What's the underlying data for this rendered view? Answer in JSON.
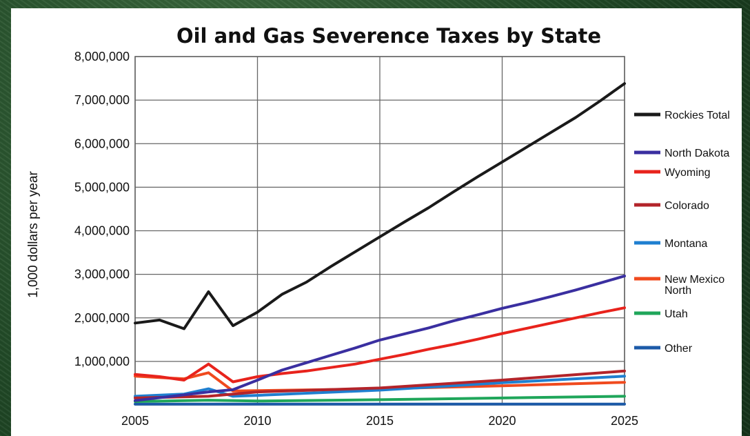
{
  "chart_data": {
    "type": "line",
    "title": "Oil and Gas Severence Taxes by State",
    "xlabel": "",
    "ylabel": "1,000 dollars per year",
    "xlim": [
      2005,
      2025
    ],
    "ylim": [
      0,
      8000000
    ],
    "x_ticks": [
      "2005",
      "2010",
      "2015",
      "2020",
      "2025"
    ],
    "y_ticks": [
      "1,000,000",
      "2,000,000",
      "3,000,000",
      "4,000,000",
      "5,000,000",
      "6,000,000",
      "7,000,000",
      "8,000,000"
    ],
    "grid": true,
    "legend_position": "right",
    "series": [
      {
        "name": "Rockies Total",
        "color": "#1a1a1a",
        "x": [
          2005,
          2006,
          2007,
          2008,
          2009,
          2010,
          2011,
          2012,
          2013,
          2014,
          2015,
          2016,
          2017,
          2018,
          2019,
          2020,
          2021,
          2022,
          2023,
          2024,
          2025
        ],
        "values": [
          1880000,
          1950000,
          1750000,
          2600000,
          1820000,
          2130000,
          2540000,
          2820000,
          3180000,
          3520000,
          3860000,
          4200000,
          4530000,
          4890000,
          5240000,
          5580000,
          5920000,
          6260000,
          6600000,
          6980000,
          7380000
        ]
      },
      {
        "name": "North Dakota",
        "color": "#3a2fa0",
        "x": [
          2005,
          2008,
          2009,
          2010,
          2011,
          2012,
          2013,
          2014,
          2015,
          2016,
          2017,
          2018,
          2019,
          2020,
          2021,
          2022,
          2023,
          2024,
          2025
        ],
        "values": [
          100000,
          300000,
          350000,
          570000,
          800000,
          970000,
          1140000,
          1310000,
          1490000,
          1630000,
          1770000,
          1930000,
          2070000,
          2220000,
          2350000,
          2490000,
          2640000,
          2800000,
          2960000
        ]
      },
      {
        "name": "Wyoming",
        "color": "#e8231c",
        "x": [
          2005,
          2006,
          2007,
          2008,
          2009,
          2010,
          2011,
          2012,
          2013,
          2014,
          2015,
          2016,
          2017,
          2018,
          2019,
          2020,
          2021,
          2022,
          2023,
          2024,
          2025
        ],
        "values": [
          700000,
          650000,
          570000,
          940000,
          530000,
          650000,
          720000,
          780000,
          860000,
          940000,
          1050000,
          1160000,
          1280000,
          1390000,
          1510000,
          1640000,
          1760000,
          1880000,
          2000000,
          2120000,
          2230000
        ]
      },
      {
        "name": "Colorado",
        "color": "#b3242a",
        "x": [
          2005,
          2008,
          2009,
          2010,
          2015,
          2020,
          2025
        ],
        "values": [
          160000,
          200000,
          250000,
          300000,
          390000,
          570000,
          780000
        ]
      },
      {
        "name": "Montana",
        "color": "#1f7fd0",
        "x": [
          2005,
          2007,
          2008,
          2009,
          2010,
          2015,
          2020,
          2025
        ],
        "values": [
          200000,
          250000,
          370000,
          200000,
          220000,
          340000,
          510000,
          660000
        ]
      },
      {
        "name": "New Mexico North",
        "color": "#f04a1e",
        "x": [
          2005,
          2006,
          2007,
          2008,
          2009,
          2010,
          2015,
          2020,
          2025
        ],
        "values": [
          660000,
          630000,
          600000,
          740000,
          320000,
          330000,
          370000,
          440000,
          520000
        ]
      },
      {
        "name": "Utah",
        "color": "#1fa65a",
        "x": [
          2005,
          2008,
          2010,
          2015,
          2020,
          2025
        ],
        "values": [
          80000,
          110000,
          90000,
          120000,
          160000,
          200000
        ]
      },
      {
        "name": "Other",
        "color": "#1c5aa8",
        "x": [
          2005,
          2010,
          2015,
          2020,
          2025
        ],
        "values": [
          20000,
          20000,
          20000,
          20000,
          20000
        ]
      }
    ]
  }
}
